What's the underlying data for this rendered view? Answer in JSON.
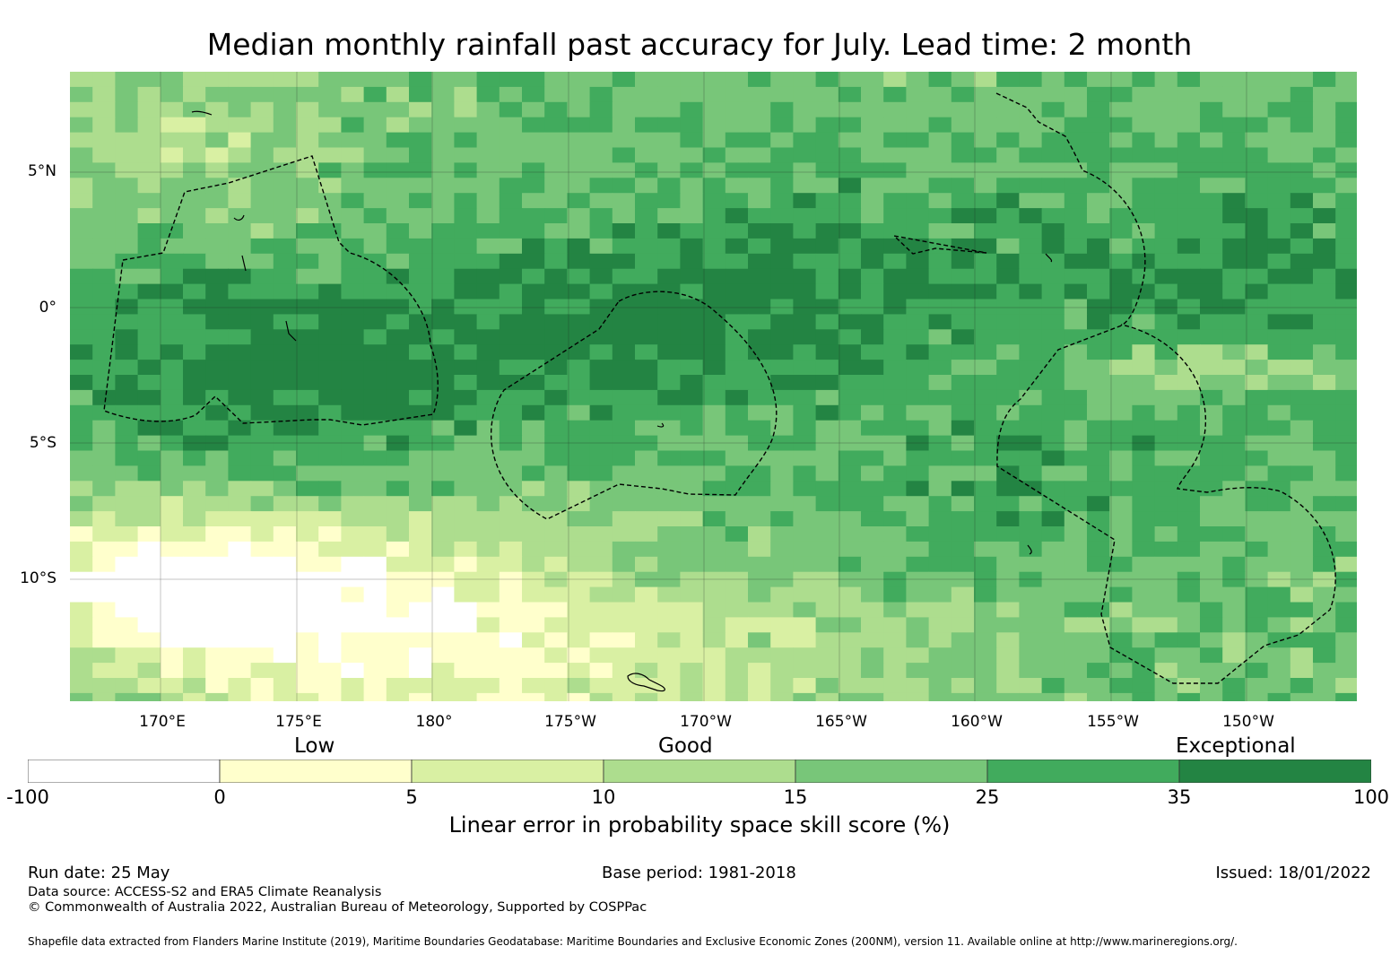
{
  "title": "Median monthly rainfall past accuracy for July. Lead time: 2 month",
  "map": {
    "lat_labels": [
      "5°N",
      "0°",
      "5°S",
      "10°S"
    ],
    "lon_labels": [
      "170°E",
      "175°E",
      "180°",
      "175°W",
      "170°W",
      "165°W",
      "160°W",
      "155°W",
      "150°W"
    ]
  },
  "legend": {
    "category_labels": [
      "Low",
      "Good",
      "Exceptional"
    ],
    "bin_edges": [
      "-100",
      "0",
      "5",
      "10",
      "15",
      "25",
      "35",
      "100"
    ],
    "bin_colors": [
      "#ffffff",
      "#ffffcc",
      "#d9f0a3",
      "#addd8e",
      "#78c679",
      "#41ab5d",
      "#238443"
    ],
    "title": "Linear error in probability space skill score (%)"
  },
  "footer": {
    "run_date": "Run date: 25 May",
    "base_period": "Base period: 1981-2018",
    "issued": "Issued: 18/01/2022",
    "data_source": "Data source: ACCESS-S2 and ERA5 Climate Reanalysis",
    "copyright": "© Commonwealth of Australia 2022, Australian Bureau of Meteorology, Supported by COSPPac",
    "shapefile": "Shapefile data extracted from Flanders Marine Institute (2019), Maritime Boundaries Geodatabase: Maritime Boundaries and Exclusive Economic Zones (200NM), version 11. Available online at http://www.marineregions.org/."
  }
}
